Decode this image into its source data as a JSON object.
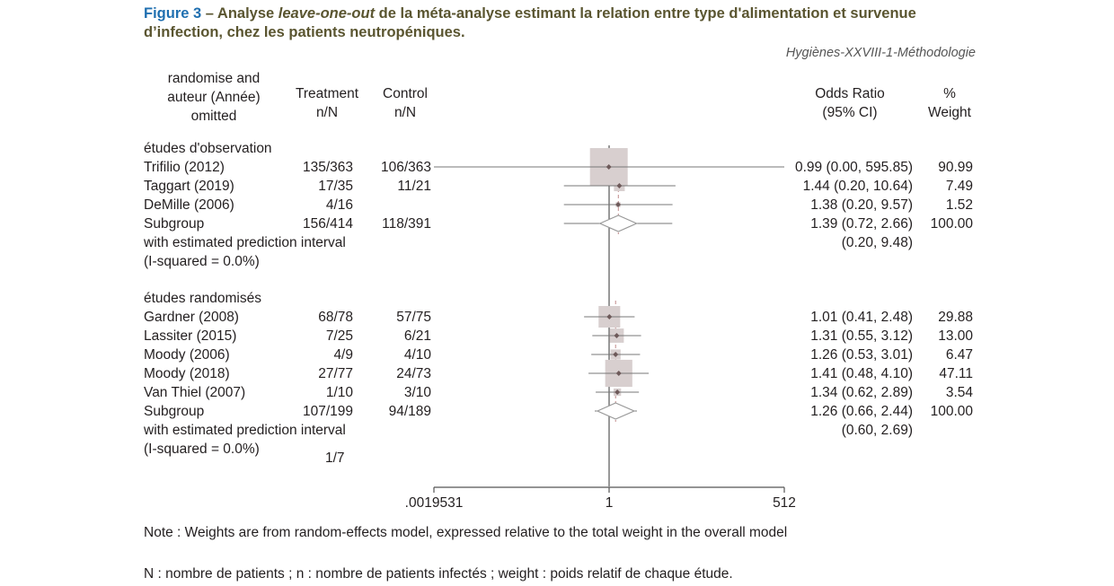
{
  "title": {
    "figure": "Figure 3",
    "sep": " – ",
    "part1": "Analyse ",
    "italic": "leave-one-out",
    "part2": " de la méta-analyse estimant la relation entre type d'alimentation et survenue",
    "line2": "d’infection, chez les patients neutropéniques."
  },
  "source": "Hygiènes-XXVIII-1-Méthodologie",
  "headers": {
    "study": [
      "randomise and",
      "auteur (Année)",
      "omitted"
    ],
    "treatment": [
      "Treatment",
      "n/N"
    ],
    "control": [
      "Control",
      "n/N"
    ],
    "or": [
      "Odds Ratio",
      "(95% CI)"
    ],
    "weight": [
      "%",
      "Weight"
    ]
  },
  "groups": [
    {
      "label": "études d'observation",
      "studies": [
        {
          "name": "Trifilio (2012)",
          "treatment": "135/363",
          "control": "106/363",
          "or_text": "0.99 (0.00, 595.85)",
          "weight_text": "90.99",
          "or": 0.99,
          "lo": 0.0,
          "hi": 595.85,
          "weight": 90.99
        },
        {
          "name": "Taggart (2019)",
          "treatment": "17/35",
          "control": "11/21",
          "or_text": "1.44 (0.20, 10.64)",
          "weight_text": "7.49",
          "or": 1.44,
          "lo": 0.2,
          "hi": 10.64,
          "weight": 7.49
        },
        {
          "name": "DeMille (2006)",
          "treatment": "4/16",
          "control": "",
          "or_text": "1.38 (0.20, 9.57)",
          "weight_text": "1.52",
          "or": 1.38,
          "lo": 0.2,
          "hi": 9.57,
          "weight": 1.52
        }
      ],
      "subgroup": {
        "name": "Subgroup",
        "treatment": "156/414",
        "control": "118/391",
        "or_text": "1.39 (0.72, 2.66)",
        "weight_text": "100.00",
        "or": 1.39,
        "lo": 0.72,
        "hi": 2.66,
        "pi_lo": 0.2,
        "pi_hi": 9.48
      },
      "pi_label": "with estimated prediction interval",
      "pi_text": "(0.20, 9.48)",
      "isq": "(I-squared = 0.0%)"
    },
    {
      "label": "études randomisés",
      "studies": [
        {
          "name": "Gardner (2008)",
          "treatment": "68/78",
          "control": "57/75",
          "or_text": "1.01 (0.41, 2.48)",
          "weight_text": "29.88",
          "or": 1.01,
          "lo": 0.41,
          "hi": 2.48,
          "weight": 29.88
        },
        {
          "name": "Lassiter (2015)",
          "treatment": "7/25",
          "control": "6/21",
          "or_text": "1.31 (0.55, 3.12)",
          "weight_text": "13.00",
          "or": 1.31,
          "lo": 0.55,
          "hi": 3.12,
          "weight": 13.0
        },
        {
          "name": "Moody (2006)",
          "treatment": "4/9",
          "control": "4/10",
          "or_text": "1.26 (0.53, 3.01)",
          "weight_text": "6.47",
          "or": 1.26,
          "lo": 0.53,
          "hi": 3.01,
          "weight": 6.47
        },
        {
          "name": "Moody (2018)",
          "treatment": "27/77",
          "control": "24/73",
          "or_text": "1.41 (0.48, 4.10)",
          "weight_text": "47.11",
          "or": 1.41,
          "lo": 0.48,
          "hi": 4.1,
          "weight": 47.11
        },
        {
          "name": "Van Thiel (2007)",
          "treatment": "1/10",
          "control": "3/10",
          "or_text": "1.34 (0.62, 2.89)",
          "weight_text": "3.54",
          "or": 1.34,
          "lo": 0.62,
          "hi": 2.89,
          "weight": 3.54
        }
      ],
      "subgroup": {
        "name": "Subgroup",
        "treatment": "107/199",
        "control": "94/189",
        "or_text": "1.26 (0.66, 2.44)",
        "weight_text": "100.00",
        "or": 1.26,
        "lo": 0.66,
        "hi": 2.44,
        "pi_lo": 0.6,
        "pi_hi": 2.69
      },
      "pi_label": "with estimated prediction interval",
      "pi_text": "(0.60, 2.69)",
      "isq": "(I-squared = 0.0%)",
      "extra": "1/7"
    }
  ],
  "chart_data": {
    "type": "forest",
    "scale": "log",
    "null_line": 1,
    "xlim": [
      0.0019531,
      512
    ],
    "ticks": [
      ".0019531",
      "1",
      "512"
    ],
    "pooled_line": 1.26,
    "colors": {
      "box": "#d8cfcf",
      "point": "#6e5a5a",
      "pooled": "#c08a8a",
      "line": "#777777",
      "diamond": "#999999"
    }
  },
  "notes": {
    "weights": "Note : Weights are from random-effects model, expressed relative to the total weight in the overall model",
    "legend": "N : nombre de patients ; n : nombre de patients infectés ; weight : poids relatif de chaque étude."
  }
}
